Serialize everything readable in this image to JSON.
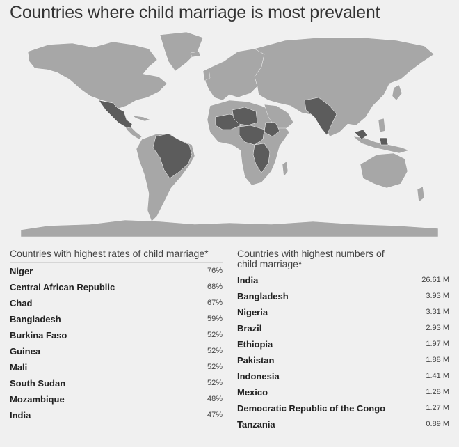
{
  "title": "Countries where child marriage is most prevalent",
  "colors": {
    "background": "#f0f0f0",
    "land": "#a7a7a7",
    "highlight": "#5c5c5c",
    "border": "#ffffff"
  },
  "map": {
    "highlighted_countries": [
      "Mexico",
      "Brazil",
      "Niger",
      "Mali",
      "Chad",
      "Nigeria",
      "Burkina Faso",
      "Guinea",
      "Central African Republic",
      "South Sudan",
      "Ethiopia",
      "Democratic Republic of the Congo",
      "Tanzania",
      "Mozambique",
      "India",
      "Pakistan",
      "Bangladesh",
      "Indonesia"
    ]
  },
  "rates_table": {
    "header": "Countries with highest rates of child marriage*",
    "rows": [
      {
        "country": "Niger",
        "value": "76%"
      },
      {
        "country": "Central African Republic",
        "value": "68%"
      },
      {
        "country": "Chad",
        "value": "67%"
      },
      {
        "country": "Bangladesh",
        "value": "59%"
      },
      {
        "country": "Burkina Faso",
        "value": "52%"
      },
      {
        "country": "Guinea",
        "value": "52%"
      },
      {
        "country": "Mali",
        "value": "52%"
      },
      {
        "country": "South Sudan",
        "value": "52%"
      },
      {
        "country": "Mozambique",
        "value": "48%"
      },
      {
        "country": "India",
        "value": "47%"
      }
    ]
  },
  "numbers_table": {
    "header_line1": "Countries with highest numbers of",
    "header_line2": "child marriage*",
    "rows": [
      {
        "country": "India",
        "value": "26.61 M"
      },
      {
        "country": "Bangladesh",
        "value": "3.93 M"
      },
      {
        "country": "Nigeria",
        "value": "3.31 M"
      },
      {
        "country": "Brazil",
        "value": "2.93 M"
      },
      {
        "country": "Ethiopia",
        "value": "1.97 M"
      },
      {
        "country": "Pakistan",
        "value": "1.88 M"
      },
      {
        "country": "Indonesia",
        "value": "1.41 M"
      },
      {
        "country": "Mexico",
        "value": "1.28 M"
      },
      {
        "country": "Democratic Republic of the Congo",
        "value": "1.27 M"
      },
      {
        "country": "Tanzania",
        "value": "0.89 M"
      }
    ]
  }
}
